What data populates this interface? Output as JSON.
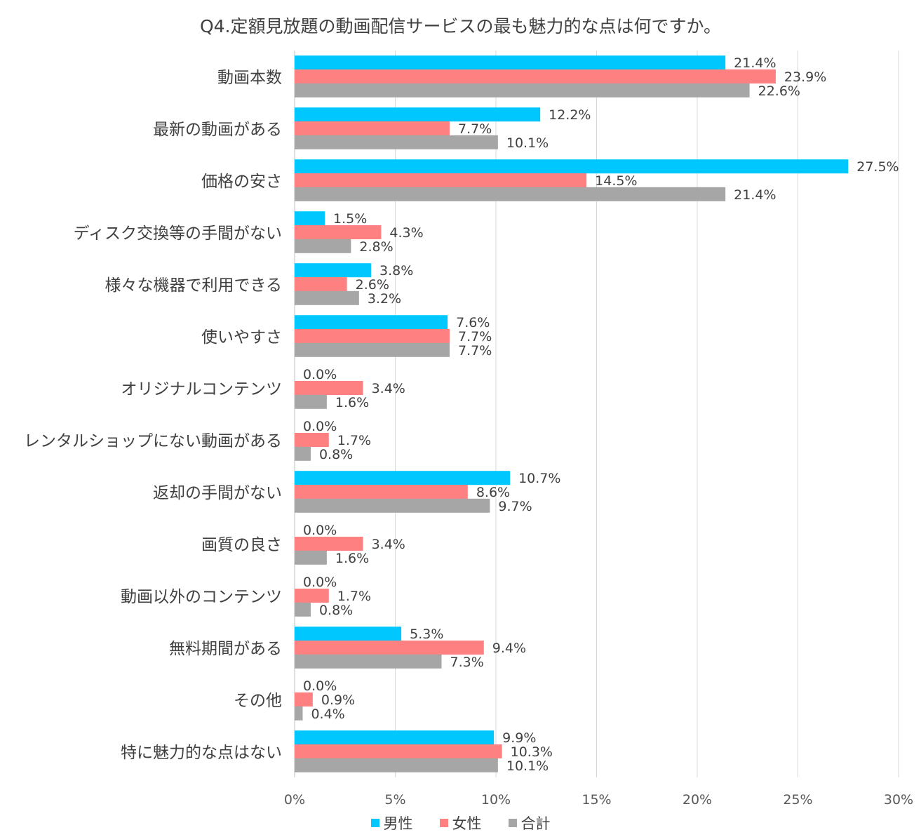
{
  "chart_data": {
    "type": "bar",
    "orientation": "horizontal",
    "title": "Q4.定額見放題の動画配信サービスの最も魅力的な点は何ですか。",
    "categories": [
      "動画本数",
      "最新の動画がある",
      "価格の安さ",
      "ディスク交換等の手間がない",
      "様々な機器で利用できる",
      "使いやすさ",
      "オリジナルコンテンツ",
      "レンタルショップにない動画がある",
      "返却の手間がない",
      "画質の良さ",
      "動画以外のコンテンツ",
      "無料期間がある",
      "その他",
      "特に魅力的な点はない"
    ],
    "series": [
      {
        "name": "男性",
        "color": "#00c8ff",
        "values": [
          21.4,
          12.2,
          27.5,
          1.5,
          3.8,
          7.6,
          0.0,
          0.0,
          10.7,
          0.0,
          0.0,
          5.3,
          0.0,
          9.9
        ]
      },
      {
        "name": "女性",
        "color": "#ff8080",
        "values": [
          23.9,
          7.7,
          14.5,
          4.3,
          2.6,
          7.7,
          3.4,
          1.7,
          8.6,
          3.4,
          1.7,
          9.4,
          0.9,
          10.3
        ]
      },
      {
        "name": "合計",
        "color": "#a6a6a6",
        "values": [
          22.6,
          10.1,
          21.4,
          2.8,
          3.2,
          7.7,
          1.6,
          0.8,
          9.7,
          1.6,
          0.8,
          7.3,
          0.4,
          10.1
        ]
      }
    ],
    "xlim": [
      0,
      30
    ],
    "xticks": [
      "0%",
      "5%",
      "10%",
      "15%",
      "20%",
      "25%",
      "30%"
    ],
    "value_suffix": "%",
    "grid": true,
    "legend_position": "bottom"
  }
}
